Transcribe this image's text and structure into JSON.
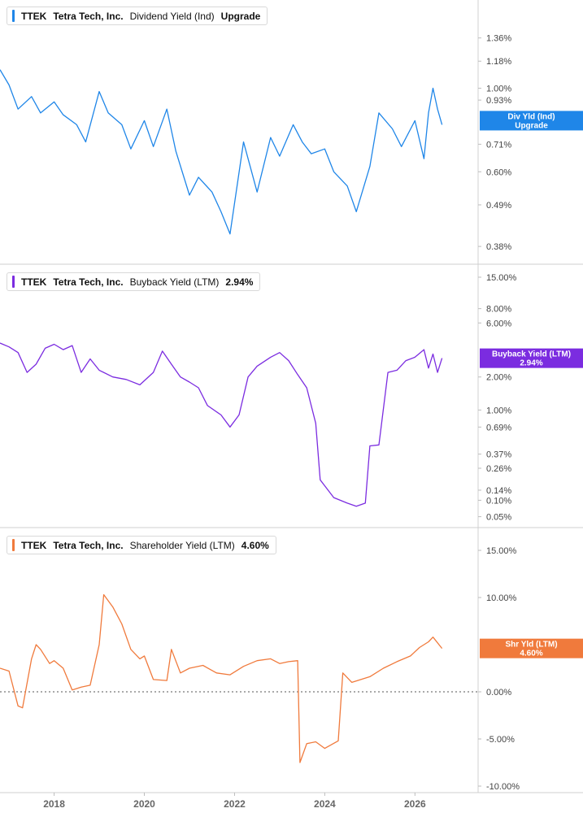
{
  "chart_data": [
    {
      "type": "line",
      "ticker": "TTEK",
      "company": "Tetra Tech, Inc.",
      "metric": "Dividend Yield (Ind)",
      "value": "Upgrade",
      "color": "#1f86e8",
      "scale": "log",
      "ylim": [
        0.36,
        1.6
      ],
      "yticks": [
        1.36,
        1.18,
        1.0,
        0.93,
        0.71,
        0.6,
        0.49,
        0.38
      ],
      "ytick_labels": [
        "1.36%",
        "1.18%",
        "1.00%",
        "0.93%",
        "0.71%",
        "0.60%",
        "0.49%",
        "0.38%"
      ],
      "end_label": [
        "Div Yld (Ind)",
        "Upgrade"
      ],
      "end_value": 0.82,
      "series": [
        {
          "x": [
            2016.8,
            2017.0,
            2017.2,
            2017.5,
            2017.7,
            2018.0,
            2018.2,
            2018.5,
            2018.7,
            2019.0,
            2019.2,
            2019.5,
            2019.7,
            2020.0,
            2020.2,
            2020.5,
            2020.7,
            2021.0,
            2021.2,
            2021.5,
            2021.7,
            2021.9,
            2022.2,
            2022.5,
            2022.8,
            2023.0,
            2023.3,
            2023.5,
            2023.7,
            2024.0,
            2024.2,
            2024.5,
            2024.7,
            2025.0,
            2025.2,
            2025.5,
            2025.7,
            2026.0,
            2026.2,
            2026.3,
            2026.4,
            2026.5,
            2026.6
          ],
          "y": [
            1.12,
            1.02,
            0.88,
            0.95,
            0.86,
            0.92,
            0.85,
            0.8,
            0.72,
            0.98,
            0.86,
            0.8,
            0.69,
            0.82,
            0.7,
            0.88,
            0.68,
            0.52,
            0.58,
            0.53,
            0.47,
            0.41,
            0.72,
            0.53,
            0.74,
            0.66,
            0.8,
            0.72,
            0.67,
            0.69,
            0.6,
            0.55,
            0.47,
            0.62,
            0.86,
            0.78,
            0.7,
            0.82,
            0.65,
            0.86,
            1.0,
            0.88,
            0.8
          ]
        }
      ]
    },
    {
      "type": "line",
      "ticker": "TTEK",
      "company": "Tetra Tech, Inc.",
      "metric": "Buyback Yield (LTM)",
      "value": "2.94%",
      "color": "#7b2ce0",
      "scale": "symlog",
      "ylim": [
        0.045,
        16.0
      ],
      "yticks": [
        15.0,
        8.0,
        6.0,
        2.0,
        1.0,
        0.69,
        0.37,
        0.26,
        0.14,
        0.1,
        0.05
      ],
      "ytick_labels": [
        "15.00%",
        "8.00%",
        "6.00%",
        "2.00%",
        "1.00%",
        "0.69%",
        "0.37%",
        "0.26%",
        "0.14%",
        "0.10%",
        "0.05%"
      ],
      "end_label": [
        "Buyback Yield (LTM)",
        "2.94%"
      ],
      "end_value": 2.94,
      "series": [
        {
          "x": [
            2016.8,
            2017.0,
            2017.2,
            2017.4,
            2017.6,
            2017.8,
            2018.0,
            2018.2,
            2018.4,
            2018.6,
            2018.8,
            2019.0,
            2019.3,
            2019.6,
            2019.9,
            2020.2,
            2020.4,
            2020.6,
            2020.8,
            2021.0,
            2021.2,
            2021.4,
            2021.7,
            2021.9,
            2022.1,
            2022.3,
            2022.5,
            2022.8,
            2023.0,
            2023.2,
            2023.4,
            2023.6,
            2023.8,
            2023.9,
            2024.0,
            2024.2,
            2024.5,
            2024.7,
            2024.9,
            2025.0,
            2025.2,
            2025.4,
            2025.6,
            2025.8,
            2026.0,
            2026.2,
            2026.3,
            2026.4,
            2026.5,
            2026.6
          ],
          "y": [
            4.0,
            3.7,
            3.3,
            2.2,
            2.6,
            3.6,
            3.9,
            3.5,
            3.8,
            2.2,
            2.9,
            2.3,
            2.0,
            1.9,
            1.7,
            2.2,
            3.4,
            2.6,
            2.0,
            1.8,
            1.6,
            1.1,
            0.9,
            0.69,
            0.9,
            2.0,
            2.5,
            3.0,
            3.3,
            2.8,
            2.1,
            1.6,
            0.75,
            0.19,
            0.16,
            0.11,
            0.09,
            0.08,
            0.09,
            0.45,
            0.46,
            2.2,
            2.3,
            2.8,
            3.0,
            3.5,
            2.4,
            3.2,
            2.2,
            2.94
          ]
        }
      ]
    },
    {
      "type": "line",
      "ticker": "TTEK",
      "company": "Tetra Tech, Inc.",
      "metric": "Shareholder Yield (LTM)",
      "value": "4.60%",
      "color": "#f07a3c",
      "scale": "linear",
      "ylim": [
        -10.0,
        15.0
      ],
      "yticks": [
        15.0,
        10.0,
        5.0,
        0.0,
        -5.0,
        -10.0
      ],
      "ytick_labels": [
        "15.00%",
        "10.00%",
        "",
        "0.00%",
        "-5.00%",
        "-10.00%"
      ],
      "zero_line": true,
      "end_label": [
        "Shr Yld (LTM)",
        "4.60%"
      ],
      "end_value": 4.6,
      "series": [
        {
          "x": [
            2016.8,
            2017.0,
            2017.2,
            2017.3,
            2017.5,
            2017.6,
            2017.7,
            2017.9,
            2018.0,
            2018.2,
            2018.4,
            2018.6,
            2018.8,
            2019.0,
            2019.1,
            2019.3,
            2019.5,
            2019.7,
            2019.9,
            2020.0,
            2020.2,
            2020.5,
            2020.6,
            2020.8,
            2021.0,
            2021.3,
            2021.6,
            2021.9,
            2022.2,
            2022.5,
            2022.8,
            2023.0,
            2023.2,
            2023.4,
            2023.45,
            2023.6,
            2023.8,
            2024.0,
            2024.3,
            2024.4,
            2024.6,
            2024.8,
            2025.0,
            2025.3,
            2025.6,
            2025.9,
            2026.1,
            2026.3,
            2026.4,
            2026.6
          ],
          "y": [
            2.5,
            2.2,
            -1.5,
            -1.7,
            3.5,
            5.0,
            4.5,
            3.0,
            3.3,
            2.5,
            0.2,
            0.5,
            0.7,
            5.0,
            10.3,
            9.0,
            7.2,
            4.5,
            3.5,
            3.8,
            1.3,
            1.2,
            4.5,
            2.0,
            2.5,
            2.8,
            2.0,
            1.8,
            2.7,
            3.3,
            3.5,
            3.0,
            3.2,
            3.3,
            -7.5,
            -5.5,
            -5.3,
            -6.0,
            -5.2,
            2.0,
            1.0,
            1.3,
            1.6,
            2.5,
            3.2,
            3.8,
            4.7,
            5.3,
            5.8,
            4.6
          ]
        }
      ]
    }
  ],
  "x_axis": {
    "labels": [
      "2018",
      "2020",
      "2022",
      "2024",
      "2026"
    ],
    "label_years": [
      2018,
      2020,
      2022,
      2024,
      2026
    ],
    "xlim": [
      2016.8,
      2027.4
    ]
  }
}
